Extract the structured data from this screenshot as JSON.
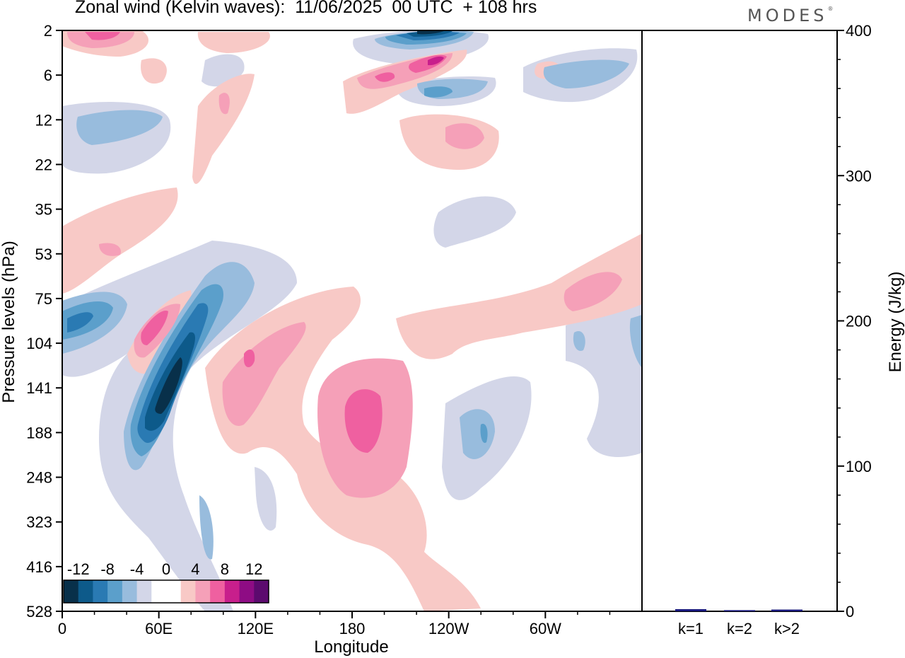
{
  "title": "Zonal wind (Kelvin waves):  11/06/2025  00 UTC  + 108 hrs",
  "brand": "MODES",
  "colors": {
    "scale": [
      "#08304a",
      "#0d5a8a",
      "#2a7ab3",
      "#5b9fcb",
      "#98bcdd",
      "#d3d6e8",
      "#ffffff",
      "#ffffff",
      "#f8c9c6",
      "#f5a0b8",
      "#ef60a0",
      "#c81f8c",
      "#8e0c84",
      "#5c0a6e"
    ],
    "bar": "#1a1a80"
  },
  "chart_data": [
    {
      "type": "heatmap",
      "description_of_field": "zonal wind anomaly contours",
      "xlabel": "Longitude",
      "ylabel": "Pressure levels (hPa)",
      "x_ticks": [
        "0",
        "60E",
        "120E",
        "180",
        "120W",
        "60W"
      ],
      "y_ticks": [
        "2",
        "6",
        "12",
        "22",
        "35",
        "53",
        "75",
        "104",
        "141",
        "188",
        "248",
        "323",
        "416",
        "528"
      ],
      "colorbar_labels": [
        "-12",
        "-8",
        "-4",
        "0",
        "4",
        "8",
        "12"
      ],
      "contour_levels": [
        -12,
        -10,
        -8,
        -6,
        -4,
        -2,
        0,
        2,
        4,
        6,
        8,
        10,
        12
      ],
      "features": [
        {
          "lon": 60,
          "p": 141,
          "value": -13
        },
        {
          "lon": 20,
          "p": 90,
          "value": -8
        },
        {
          "lon": 185,
          "p": 165,
          "value": 9
        },
        {
          "lon": 115,
          "p": 115,
          "value": 7
        },
        {
          "lon": 50,
          "p": 104,
          "value": 7
        },
        {
          "lon": 230,
          "p": 190,
          "value": -7
        },
        {
          "lon": 250,
          "p": 2,
          "value": -13
        },
        {
          "lon": 230,
          "p": 5,
          "value": 9
        },
        {
          "lon": 215,
          "p": 14,
          "value": 5
        },
        {
          "lon": 330,
          "p": 80,
          "value": 6
        }
      ]
    },
    {
      "type": "bar",
      "categories": [
        "k=1",
        "k=2",
        "k>2"
      ],
      "values": [
        1.5,
        0.8,
        1.2
      ],
      "ylabel": "Energy (J/kg)",
      "ylim": [
        0,
        400
      ],
      "yticks": [
        "0",
        "100",
        "200",
        "300",
        "400"
      ]
    }
  ]
}
